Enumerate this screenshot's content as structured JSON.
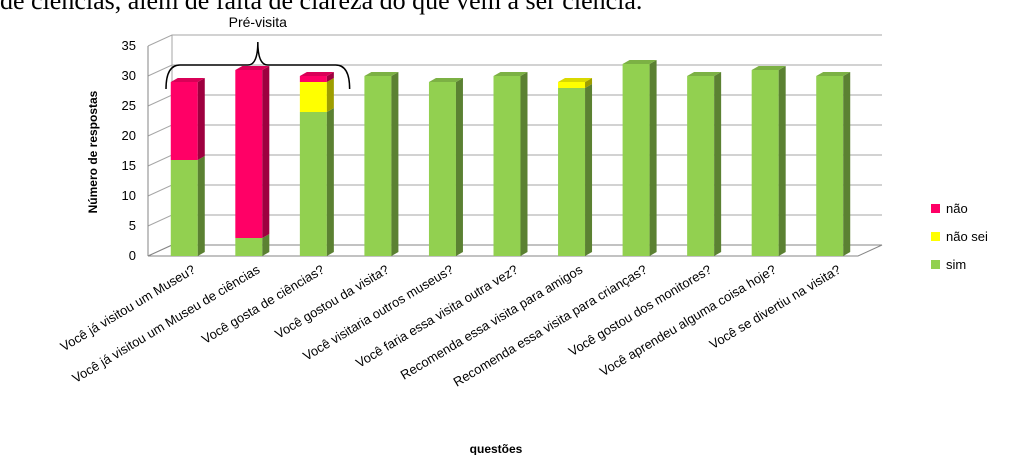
{
  "page": {
    "top_text": "de ciências, além de falta de clareza do que vem a ser ciência."
  },
  "chart_data": {
    "type": "bar",
    "stacked": true,
    "three_d": true,
    "title": "",
    "xlabel": "questões",
    "ylabel": "Número de respostas",
    "ylim": [
      0,
      35
    ],
    "yticks": [
      0,
      5,
      10,
      15,
      20,
      25,
      30,
      35
    ],
    "grid": true,
    "legend_position": "right",
    "categories": [
      "Você já visitou um Museu?",
      "Você já visitou um Museu de ciências",
      "Você gosta de ciências?",
      "Você gostou da visita?",
      "Você visitaria outros museus?",
      "Você faria essa visita outra vez?",
      "Recomenda essa visita para amigos",
      "Recomenda essa visita para crianças?",
      "Você gostou dos monitores?",
      "Você aprendeu alguma coisa hoje?",
      "Você se divertiu na visita?"
    ],
    "series": [
      {
        "name": "sim",
        "color": "#92d050",
        "values": [
          16,
          3,
          24,
          30,
          29,
          30,
          28,
          32,
          30,
          31,
          30
        ]
      },
      {
        "name": "não sei",
        "color": "#ffff00",
        "values": [
          0,
          0,
          5,
          0,
          0,
          0,
          1,
          0,
          0,
          0,
          0
        ]
      },
      {
        "name": "não",
        "color": "#ff0066",
        "values": [
          13,
          28,
          1,
          0,
          0,
          0,
          0,
          0,
          0,
          0,
          0
        ]
      }
    ],
    "legend": [
      "não",
      "não sei",
      "sim"
    ],
    "annotation": {
      "text": "Pré-visita",
      "spans_categories": [
        0,
        2
      ]
    }
  }
}
